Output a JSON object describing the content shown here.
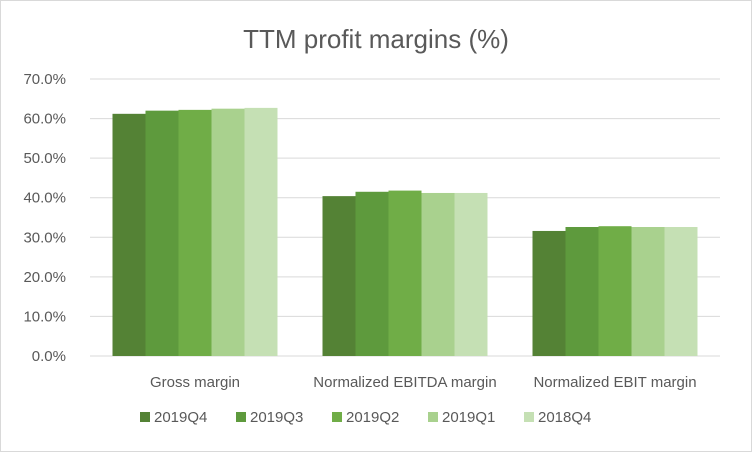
{
  "chart_data": {
    "type": "bar",
    "title": "TTM profit margins (%)",
    "xlabel": "",
    "ylabel": "",
    "categories": [
      "Gross margin",
      "Normalized EBITDA margin",
      "Normalized EBIT margin"
    ],
    "series": [
      {
        "name": "2019Q4",
        "values": [
          61.2,
          40.4,
          31.6
        ],
        "color": "#548235"
      },
      {
        "name": "2019Q3",
        "values": [
          62.0,
          41.5,
          32.6
        ],
        "color": "#5e9a3d"
      },
      {
        "name": "2019Q2",
        "values": [
          62.2,
          41.8,
          32.8
        ],
        "color": "#70ad47"
      },
      {
        "name": "2019Q1",
        "values": [
          62.5,
          41.2,
          32.6
        ],
        "color": "#a9d18e"
      },
      {
        "name": "2018Q4",
        "values": [
          62.7,
          41.2,
          32.6
        ],
        "color": "#c5e0b4"
      }
    ],
    "ylim": [
      0,
      70
    ],
    "yticks": [
      "0.0%",
      "10.0%",
      "20.0%",
      "30.0%",
      "40.0%",
      "50.0%",
      "60.0%",
      "70.0%"
    ],
    "grid": true,
    "legend": "bottom"
  }
}
